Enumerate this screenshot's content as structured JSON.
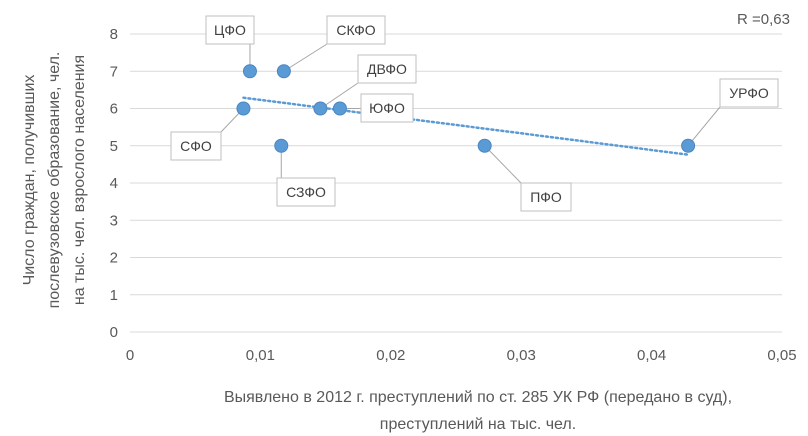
{
  "chart_data": {
    "type": "scatter",
    "annotation": "R =0,63",
    "xlabel_lines": [
      "Выявлено в 2012 г. преступлений по ст. 285 УК РФ (передано в суд),",
      "преступлений на тыс. чел."
    ],
    "ylabel_lines": [
      "Число граждан, получивших",
      "послевузовское образование, чел.",
      "на тыс. чел. взрослого населения"
    ],
    "xlim": [
      0,
      0.05
    ],
    "ylim": [
      0,
      8
    ],
    "x_ticks": [
      0,
      0.01,
      0.02,
      0.03,
      0.04,
      0.05
    ],
    "x_tick_labels": [
      "0",
      "0,01",
      "0,02",
      "0,03",
      "0,04",
      "0,05"
    ],
    "y_ticks": [
      0,
      1,
      2,
      3,
      4,
      5,
      6,
      7,
      8
    ],
    "y_tick_labels": [
      "0",
      "1",
      "2",
      "3",
      "4",
      "5",
      "6",
      "7",
      "8"
    ],
    "grid": true,
    "points": [
      {
        "label": "ЦФО",
        "x": 0.0092,
        "y": 7
      },
      {
        "label": "СКФО",
        "x": 0.0118,
        "y": 7
      },
      {
        "label": "ДВФО",
        "x": 0.0146,
        "y": 6
      },
      {
        "label": "ЮФО",
        "x": 0.0161,
        "y": 6
      },
      {
        "label": "СФО",
        "x": 0.0087,
        "y": 6
      },
      {
        "label": "СЗФО",
        "x": 0.0116,
        "y": 5
      },
      {
        "label": "ПФО",
        "x": 0.0272,
        "y": 5
      },
      {
        "label": "УРФО",
        "x": 0.0428,
        "y": 5
      }
    ],
    "trendline": {
      "x_start": 0.0087,
      "y_start": 6.29,
      "x_end": 0.0428,
      "y_end": 4.76
    },
    "colors": {
      "marker": "#5b9bd5",
      "marker_stroke": "#4a86c2",
      "trendline": "#5b9bd5",
      "grid": "#d9d9d9",
      "text": "#595959",
      "callout_border": "#bfbfbf",
      "leader": "#a6a6a6"
    }
  }
}
